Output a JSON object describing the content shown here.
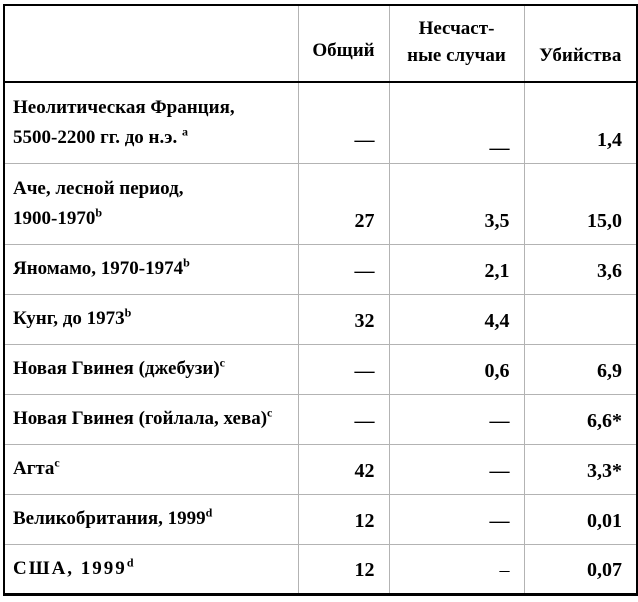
{
  "table": {
    "columns": {
      "label": "",
      "total": "Общий",
      "accidents": "Несчаст-\nные случаи",
      "homicides": "Убийства"
    },
    "rows": [
      {
        "label": "Неолитическая Франция,\n5500-2200 гг. до н.э. ",
        "sup": "a",
        "total": "—",
        "accidents": "—",
        "homicides": "1,4"
      },
      {
        "label": "Аче, лесной период,\n1900-1970",
        "sup": "b",
        "total": "27",
        "accidents": "3,5",
        "homicides": "15,0"
      },
      {
        "label": "Яномамо, 1970-1974",
        "sup": "b",
        "total": "—",
        "accidents": "2,1",
        "homicides": "3,6"
      },
      {
        "label": "Кунг, до 1973",
        "sup": "b",
        "total": "32",
        "accidents": "4,4",
        "homicides": ""
      },
      {
        "label": "Новая Гвинея (джебузи)",
        "sup": "c",
        "total": "—",
        "accidents": "0,6",
        "homicides": "6,9"
      },
      {
        "label": "Новая Гвинея (гойлала, хева)",
        "sup": "c",
        "total": "—",
        "accidents": "—",
        "homicides": "6,6*"
      },
      {
        "label": "Агта",
        "sup": "c",
        "total": "42",
        "accidents": "—",
        "homicides": "3,3*"
      },
      {
        "label": "Великобритания, 1999",
        "sup": "d",
        "total": "12",
        "accidents": "—",
        "homicides": "0,01"
      },
      {
        "label": "США, 1999",
        "sup": "d",
        "total": "12",
        "accidents": "–",
        "homicides": "0,07"
      }
    ],
    "colors": {
      "grid_inner": "#b3b3b3",
      "border_outer": "#000000",
      "text": "#000000",
      "background": "#ffffff"
    }
  }
}
